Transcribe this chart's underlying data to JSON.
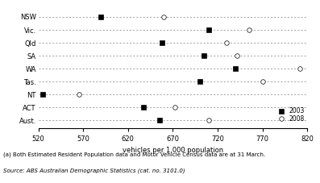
{
  "categories": [
    "NSW",
    "Vic.",
    "Qld",
    "SA",
    "WA",
    "Tas.",
    "NT",
    "ACT",
    "Aust."
  ],
  "data_2003": [
    590,
    710,
    658,
    705,
    740,
    700,
    525,
    637,
    655
  ],
  "data_2008": [
    660,
    755,
    730,
    742,
    812,
    770,
    565,
    672,
    710
  ],
  "xlim": [
    520,
    820
  ],
  "xticks": [
    520,
    570,
    620,
    670,
    720,
    770,
    820
  ],
  "xlabel": "vehicles per 1,000 population",
  "marker_2003": "s",
  "marker_2008": "o",
  "color_fill_2003": "black",
  "color_fill_2008": "white",
  "markersize": 4,
  "label_fontsize": 6,
  "tick_fontsize": 6,
  "legend_2003": "2003",
  "legend_2008": "2008",
  "footnote1": "(a) Both Estimated Resident Population data and Motor Vehicle Census data are at 31 March.",
  "footnote2": "Source: ABS Australian Demographic Statistics (cat. no. 3101.0)"
}
